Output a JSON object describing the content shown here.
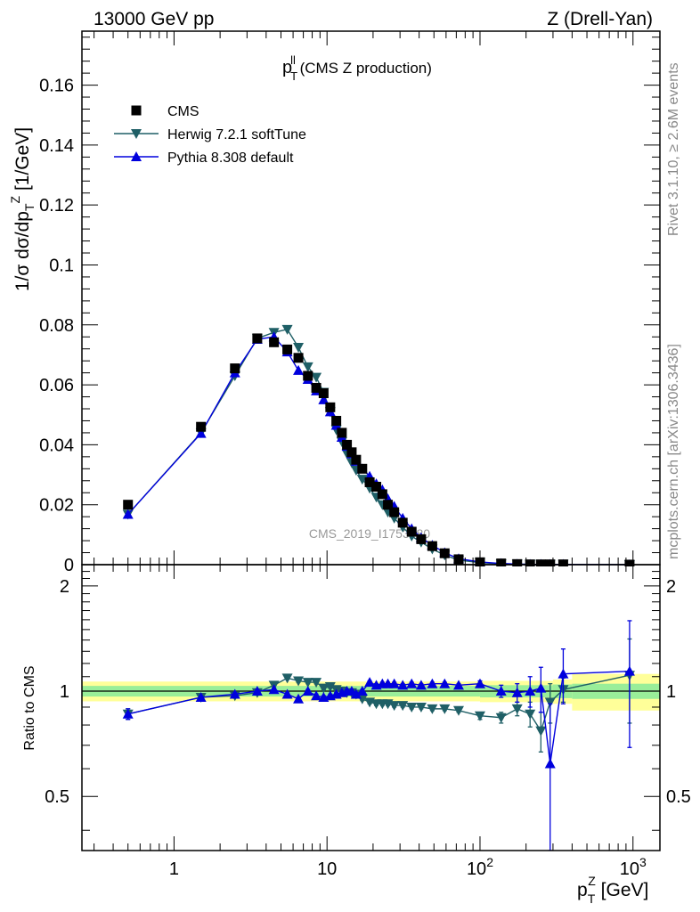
{
  "header": {
    "left": "13000 GeV pp",
    "right": "Z (Drell-Yan)"
  },
  "side": {
    "rivet": "Rivet 3.1.10, ≥ 2.6M events",
    "mcplots": "mcplots.cern.ch [arXiv:1306.3436]"
  },
  "plot_title": {
    "p": "p",
    "sup": "ll",
    "sub": "T",
    "rest": " (CMS Z production)"
  },
  "watermark": "CMS_2019_I1753680",
  "ylabel_main": "1/σ dσ/dp",
  "ylabel_main_sub": "T",
  "ylabel_main_sup": "Z",
  "ylabel_main_unit": " [1/GeV]",
  "ylabel_ratio": "Ratio to CMS",
  "xlabel": {
    "p": "p",
    "sub": "T",
    "sup": "Z",
    "unit": " [GeV]"
  },
  "legend": [
    {
      "label": "CMS",
      "color": "#000000",
      "marker": "square"
    },
    {
      "label": "Herwig 7.2.1 softTune",
      "color": "#1f5f66",
      "marker": "triangle-down"
    },
    {
      "label": "Pythia 8.308 default",
      "color": "#0000dd",
      "marker": "triangle-up"
    }
  ],
  "colors": {
    "data": "#000000",
    "herwig": "#1f5f66",
    "pythia": "#0000dd",
    "band_outer": "#ffff99",
    "band_inner": "#99ee99"
  },
  "chart_data": [
    {
      "type": "scatter",
      "panel": "main",
      "xscale": "log",
      "xlim": [
        0.25,
        1500
      ],
      "ylim": [
        0,
        0.178
      ],
      "yticks": [
        "0",
        "0.02",
        "0.04",
        "0.06",
        "0.08",
        "0.1",
        "0.12",
        "0.14",
        "0.16"
      ],
      "xticks": [
        "1",
        "10",
        "10^2",
        "10^3"
      ],
      "x": [
        0.5,
        1.5,
        2.5,
        3.5,
        4.5,
        5.5,
        6.5,
        7.5,
        8.5,
        9.5,
        10.5,
        11.5,
        12.5,
        13.5,
        14.5,
        15.5,
        17,
        19,
        21,
        23,
        25,
        27.5,
        31.25,
        35.75,
        41.25,
        48.75,
        58.75,
        72.5,
        100,
        137.5,
        175,
        212.5,
        250,
        287.5,
        350,
        950
      ],
      "series": [
        {
          "name": "CMS",
          "values": [
            0.02,
            0.046,
            0.0655,
            0.0755,
            0.0742,
            0.0718,
            0.069,
            0.063,
            0.059,
            0.0572,
            0.0525,
            0.048,
            0.044,
            0.04,
            0.0375,
            0.035,
            0.032,
            0.0275,
            0.026,
            0.0235,
            0.02,
            0.0175,
            0.014,
            0.011,
            0.0085,
            0.0062,
            0.0038,
            0.0018,
            0.0008,
            0.0004,
            0.0002,
            0.0001,
            0.0001,
            0.0001,
            0.0001,
            1e-05
          ]
        },
        {
          "name": "Herwig 7.2.1 softTune",
          "values": [
            0.0168,
            0.044,
            0.063,
            0.0755,
            0.0775,
            0.0785,
            0.0725,
            0.066,
            0.0625,
            0.0575,
            0.051,
            0.045,
            0.041,
            0.037,
            0.034,
            0.0315,
            0.0285,
            0.0255,
            0.0225,
            0.02,
            0.0175,
            0.0155,
            0.0125,
            0.0095,
            0.0075,
            0.0052,
            0.0032,
            0.0015,
            0.0007,
            0.0003,
            0.0002,
            0.0001,
            0.0001,
            0.0001,
            0.0001,
            1e-05
          ]
        },
        {
          "name": "Pythia 8.308 default",
          "values": [
            0.0168,
            0.0438,
            0.064,
            0.0752,
            0.076,
            0.071,
            0.0648,
            0.0618,
            0.058,
            0.055,
            0.051,
            0.0465,
            0.0425,
            0.0395,
            0.037,
            0.0345,
            0.032,
            0.0295,
            0.027,
            0.025,
            0.022,
            0.0195,
            0.0155,
            0.012,
            0.009,
            0.0065,
            0.004,
            0.002,
            0.0009,
            0.0004,
            0.0002,
            0.0001,
            0.0001,
            0.0001,
            0.0001,
            1e-05
          ]
        }
      ]
    },
    {
      "type": "scatter",
      "panel": "ratio",
      "xscale": "log",
      "xlim": [
        0.25,
        1500
      ],
      "ylim": [
        0.35,
        2.3
      ],
      "ylabel": "Ratio to CMS",
      "yticks": [
        "0.5",
        "1",
        "2"
      ],
      "x": [
        0.5,
        1.5,
        2.5,
        3.5,
        4.5,
        5.5,
        6.5,
        7.5,
        8.5,
        9.5,
        10.5,
        11.5,
        12.5,
        13.5,
        14.5,
        15.5,
        17,
        19,
        21,
        23,
        25,
        27.5,
        31.25,
        35.75,
        41.25,
        48.75,
        58.75,
        72.5,
        100,
        137.5,
        175,
        212.5,
        250,
        287.5,
        350,
        950
      ],
      "series": [
        {
          "name": "Herwig 7.2.1 softTune",
          "values": [
            0.86,
            0.96,
            0.97,
            0.99,
            1.04,
            1.09,
            1.07,
            1.06,
            1.06,
            1.02,
            1.03,
            1.01,
            1.0,
            0.99,
            0.99,
            0.98,
            0.95,
            0.93,
            0.92,
            0.92,
            0.92,
            0.91,
            0.91,
            0.9,
            0.9,
            0.89,
            0.89,
            0.88,
            0.85,
            0.84,
            0.89,
            0.86,
            0.77,
            0.93,
            1.01,
            1.11
          ],
          "errors": [
            0.03,
            0.01,
            0.01,
            0.01,
            0.01,
            0.01,
            0.01,
            0.01,
            0.01,
            0.01,
            0.01,
            0.01,
            0.01,
            0.01,
            0.01,
            0.01,
            0.01,
            0.01,
            0.01,
            0.01,
            0.01,
            0.01,
            0.01,
            0.01,
            0.01,
            0.01,
            0.01,
            0.01,
            0.02,
            0.03,
            0.04,
            0.07,
            0.1,
            0.12,
            0.08,
            0.3
          ]
        },
        {
          "name": "Pythia 8.308 default",
          "values": [
            0.86,
            0.96,
            0.98,
            1.0,
            1.01,
            0.98,
            0.95,
            1.0,
            0.97,
            0.96,
            0.97,
            0.98,
            0.99,
            1.0,
            1.0,
            0.98,
            1.0,
            1.06,
            1.04,
            1.05,
            1.05,
            1.05,
            1.04,
            1.05,
            1.04,
            1.05,
            1.05,
            1.04,
            1.05,
            1.0,
            0.99,
            1.0,
            1.02,
            0.62,
            1.12,
            1.14
          ],
          "errors": [
            0.03,
            0.01,
            0.01,
            0.01,
            0.01,
            0.01,
            0.01,
            0.01,
            0.01,
            0.01,
            0.01,
            0.01,
            0.01,
            0.01,
            0.01,
            0.01,
            0.01,
            0.01,
            0.01,
            0.01,
            0.01,
            0.01,
            0.01,
            0.01,
            0.01,
            0.01,
            0.01,
            0.01,
            0.02,
            0.04,
            0.06,
            0.1,
            0.15,
            0.3,
            0.2,
            0.45
          ]
        }
      ],
      "band": {
        "x_edges": [
          0.25,
          100,
          300,
          400,
          1500
        ],
        "outer": [
          0.065,
          0.07,
          0.08,
          0.12,
          0.12
        ],
        "inner": [
          0.035,
          0.04,
          0.045,
          0.05,
          0.06
        ]
      }
    }
  ]
}
